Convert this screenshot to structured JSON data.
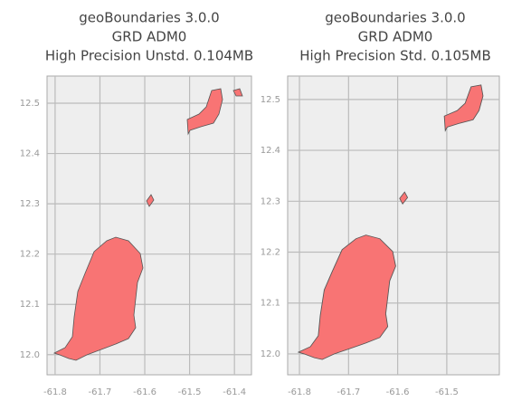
{
  "chart_data": [
    {
      "type": "map",
      "title": [
        "geoBoundaries 3.0.0",
        "GRD ADM0",
        "High Precision Unstd. 0.104MB"
      ],
      "xlim": [
        -61.818,
        -61.362
      ],
      "ylim": [
        11.96,
        12.554
      ],
      "xticks": [
        -61.8,
        -61.7,
        -61.6,
        -61.5,
        -61.4
      ],
      "yticks": [
        {
          "value": 12,
          "label": "12.0"
        },
        12.1,
        12.2,
        12.3,
        12.4,
        12.5
      ],
      "grid": true,
      "color": "#f87474"
    },
    {
      "type": "map",
      "title": [
        "geoBoundaries 3.0.0",
        "GRD ADM0",
        "High Precision Std. 0.105MB"
      ],
      "xlim": [
        -61.824,
        -61.393
      ],
      "ylim": [
        11.959,
        12.546
      ],
      "xticks": [
        -61.8,
        -61.7,
        -61.6,
        -61.5
      ],
      "yticks": [
        {
          "value": 12,
          "label": "12.0"
        },
        12.1,
        12.2,
        12.3,
        12.4,
        12.5
      ],
      "grid": true,
      "color": "#f87474"
    }
  ]
}
